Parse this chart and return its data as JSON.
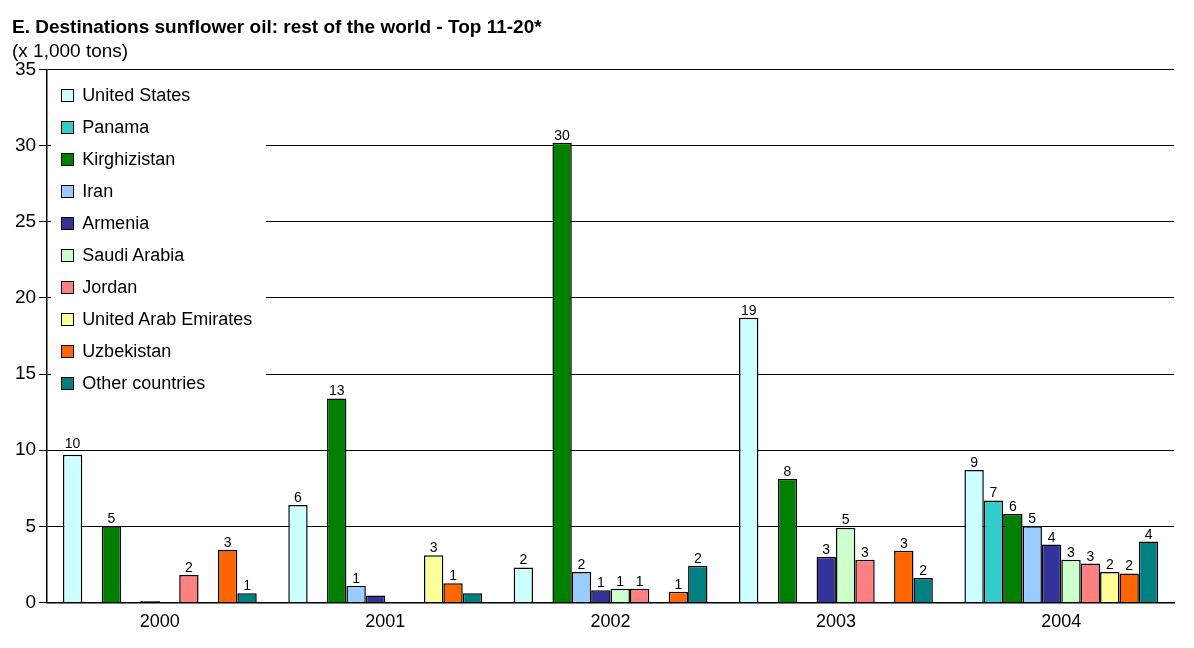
{
  "chart_data": {
    "type": "bar",
    "title": "E. Destinations sunflower oil: rest of the world - Top 11-20*",
    "subtitle": "(x 1,000 tons)",
    "categories": [
      "2000",
      "2001",
      "2002",
      "2003",
      "2004"
    ],
    "series": [
      {
        "name": "United States",
        "color": "#ccffff",
        "values": [
          9.7,
          6.4,
          2.3,
          18.7,
          8.7
        ],
        "value_labels": [
          "10",
          "6",
          "2",
          "19",
          "9"
        ]
      },
      {
        "name": "Panama",
        "color": "#33cccc",
        "values": [
          null,
          null,
          null,
          null,
          6.7
        ],
        "value_labels": [
          null,
          null,
          null,
          null,
          "7"
        ]
      },
      {
        "name": "Kirghizistan",
        "color": "#008000",
        "values": [
          5.0,
          13.4,
          30.2,
          8.1,
          5.8
        ],
        "value_labels": [
          "5",
          "13",
          "30",
          "8",
          "6"
        ]
      },
      {
        "name": "Iran",
        "color": "#99ccff",
        "values": [
          null,
          1.1,
          2.0,
          null,
          5.0
        ],
        "value_labels": [
          null,
          "1",
          "2",
          null,
          "5"
        ]
      },
      {
        "name": "Armenia",
        "color": "#333399",
        "values": [
          0.1,
          0.45,
          0.8,
          3.0,
          3.8
        ],
        "value_labels": [
          null,
          null,
          "1",
          "3",
          "4"
        ]
      },
      {
        "name": "Saudi Arabia",
        "color": "#ccffcc",
        "values": [
          null,
          null,
          0.9,
          4.9,
          2.8
        ],
        "value_labels": [
          null,
          null,
          "1",
          "5",
          "3"
        ]
      },
      {
        "name": "Jordan",
        "color": "#ff8080",
        "values": [
          1.8,
          null,
          0.9,
          2.8,
          2.55
        ],
        "value_labels": [
          "2",
          null,
          "1",
          "3",
          "3"
        ]
      },
      {
        "name": "United Arab Emirates",
        "color": "#ffff99",
        "values": [
          null,
          3.1,
          null,
          null,
          2.0
        ],
        "value_labels": [
          null,
          "3",
          null,
          null,
          "2"
        ]
      },
      {
        "name": "Uzbekistan",
        "color": "#ff6600",
        "values": [
          3.45,
          1.25,
          0.7,
          3.4,
          1.9
        ],
        "value_labels": [
          "3",
          "1",
          "1",
          "3",
          "2"
        ]
      },
      {
        "name": "Other countries",
        "color": "#008080",
        "values": [
          0.6,
          0.6,
          2.4,
          1.6,
          4.0
        ],
        "value_labels": [
          "1",
          null,
          "2",
          "2",
          "4"
        ]
      }
    ],
    "ylim": [
      0,
      35
    ],
    "yticks": [
      0,
      5,
      10,
      15,
      20,
      25,
      30,
      35
    ],
    "grid": "y",
    "legend": "top left"
  }
}
